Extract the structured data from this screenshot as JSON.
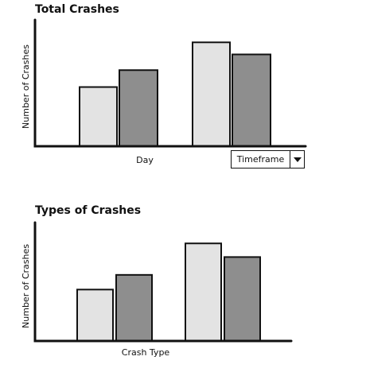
{
  "colors": {
    "bar_light": "#e3e3e3",
    "bar_dark": "#8e8e8e",
    "outline": "#111111"
  },
  "timeframe_dropdown": {
    "selected": "Timeframe",
    "arrow_icon": "chevron-down-icon"
  },
  "chart_data": [
    {
      "type": "bar",
      "title": "Total Crashes",
      "xlabel": "Day",
      "ylabel": "Number of Crashes",
      "ylim": [
        0,
        100
      ],
      "grid": false,
      "categories": [
        "",
        ""
      ],
      "series": [
        {
          "values": [
            49,
            63
          ]
        },
        {
          "values": [
            86,
            76
          ]
        }
      ],
      "bar_colors": [
        "bar_light",
        "bar_dark",
        "bar_light",
        "bar_dark"
      ]
    },
    {
      "type": "bar",
      "title": "Types of Crashes",
      "xlabel": "Crash Type",
      "ylabel": "Number of Crashes",
      "ylim": [
        0,
        100
      ],
      "grid": false,
      "categories": [
        "",
        ""
      ],
      "series": [
        {
          "values": [
            49,
            63
          ]
        },
        {
          "values": [
            93,
            80
          ]
        }
      ],
      "bar_colors": [
        "bar_light",
        "bar_dark",
        "bar_light",
        "bar_dark"
      ]
    }
  ]
}
